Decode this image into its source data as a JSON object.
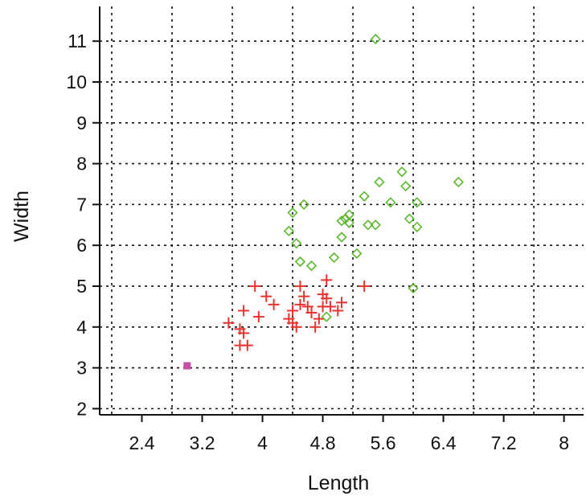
{
  "chart_data": {
    "type": "scatter",
    "xlabel": "Length",
    "ylabel": "Width",
    "xlim": [
      1.84,
      8.26
    ],
    "ylim": [
      1.85,
      11.85
    ],
    "x_ticks": [
      2.4,
      3.2,
      4,
      4.8,
      5.6,
      6.4,
      7.2,
      8
    ],
    "x_tick_labels": [
      "2.4",
      "3.2",
      "4",
      "4.8",
      "5.6",
      "6.4",
      "7.2",
      "8"
    ],
    "x_grid_at": [
      2.0,
      2.8,
      3.6,
      4.4,
      5.2,
      6.0,
      6.8,
      7.6
    ],
    "y_ticks": [
      2,
      3,
      4,
      5,
      6,
      7,
      8,
      9,
      10,
      11
    ],
    "y_tick_labels": [
      "2",
      "3",
      "4",
      "5",
      "6",
      "7",
      "8",
      "9",
      "10",
      "11"
    ],
    "grid": true,
    "grid_style": "dotted",
    "series": [
      {
        "marker": "plus",
        "color": "#e8332e",
        "points": [
          [
            3.55,
            4.1
          ],
          [
            3.7,
            3.55
          ],
          [
            3.8,
            3.55
          ],
          [
            3.75,
            3.85
          ],
          [
            3.7,
            3.95
          ],
          [
            3.75,
            4.4
          ],
          [
            3.9,
            5.0
          ],
          [
            3.95,
            4.25
          ],
          [
            4.05,
            4.75
          ],
          [
            4.15,
            4.55
          ],
          [
            4.35,
            4.2
          ],
          [
            4.4,
            4.1
          ],
          [
            4.45,
            4.0
          ],
          [
            4.4,
            4.4
          ],
          [
            4.5,
            4.55
          ],
          [
            4.5,
            5.0
          ],
          [
            4.55,
            4.75
          ],
          [
            4.6,
            4.5
          ],
          [
            4.65,
            4.35
          ],
          [
            4.7,
            4.0
          ],
          [
            4.75,
            4.2
          ],
          [
            4.8,
            4.5
          ],
          [
            4.8,
            4.8
          ],
          [
            4.85,
            5.15
          ],
          [
            4.85,
            4.7
          ],
          [
            4.9,
            4.5
          ],
          [
            5.0,
            4.4
          ],
          [
            5.05,
            4.6
          ],
          [
            5.35,
            5.0
          ]
        ]
      },
      {
        "marker": "diamond",
        "color": "#5cb82f",
        "points": [
          [
            5.5,
            11.05
          ],
          [
            4.35,
            6.35
          ],
          [
            4.4,
            6.8
          ],
          [
            4.45,
            6.05
          ],
          [
            4.5,
            5.6
          ],
          [
            4.55,
            7.0
          ],
          [
            4.65,
            5.5
          ],
          [
            4.85,
            4.25
          ],
          [
            4.95,
            5.7
          ],
          [
            5.05,
            6.2
          ],
          [
            5.05,
            6.6
          ],
          [
            5.1,
            6.65
          ],
          [
            5.15,
            6.55
          ],
          [
            5.15,
            6.75
          ],
          [
            5.25,
            5.8
          ],
          [
            5.35,
            7.2
          ],
          [
            5.4,
            6.5
          ],
          [
            5.5,
            6.5
          ],
          [
            5.55,
            7.55
          ],
          [
            5.7,
            7.05
          ],
          [
            5.85,
            7.8
          ],
          [
            5.9,
            7.45
          ],
          [
            5.95,
            6.65
          ],
          [
            6.05,
            6.45
          ],
          [
            6.05,
            7.05
          ],
          [
            6.0,
            4.95
          ],
          [
            6.6,
            7.55
          ]
        ]
      },
      {
        "marker": "square",
        "color": "#c94fa6",
        "points": [
          [
            3.0,
            3.05
          ]
        ]
      }
    ]
  }
}
